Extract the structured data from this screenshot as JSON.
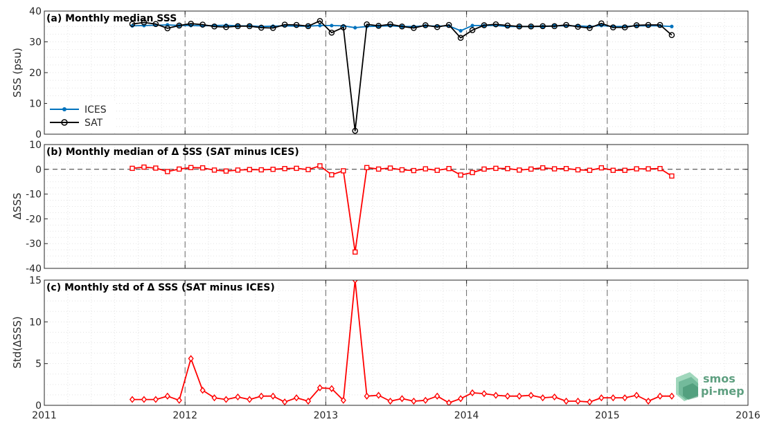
{
  "chart_data": [
    {
      "type": "line",
      "title": "(a) Monthly median SSS",
      "xlabel": "",
      "ylabel": "SSS (psu)",
      "xlim": [
        2011,
        2016
      ],
      "ylim": [
        0,
        40
      ],
      "yticks": [
        0,
        10,
        20,
        30,
        40
      ],
      "grid": "minor-dotted",
      "legend": "bottom-left",
      "x": [
        "2011-08",
        "2011-09",
        "2011-10",
        "2011-11",
        "2011-12",
        "2012-01",
        "2012-02",
        "2012-03",
        "2012-04",
        "2012-05",
        "2012-06",
        "2012-07",
        "2012-08",
        "2012-09",
        "2012-10",
        "2012-11",
        "2012-12",
        "2013-01",
        "2013-02",
        "2013-03",
        "2013-04",
        "2013-05",
        "2013-06",
        "2013-07",
        "2013-08",
        "2013-09",
        "2013-10",
        "2013-11",
        "2013-12",
        "2014-01",
        "2014-02",
        "2014-03",
        "2014-04",
        "2014-05",
        "2014-06",
        "2014-07",
        "2014-08",
        "2014-09",
        "2014-10",
        "2014-11",
        "2014-12",
        "2015-01",
        "2015-02",
        "2015-03",
        "2015-04",
        "2015-05",
        "2015-06"
      ],
      "series": [
        {
          "name": "ICES",
          "color": "#0072BD",
          "marker": "dot",
          "values": [
            35.2,
            35.3,
            35.4,
            35.5,
            35.3,
            35.3,
            35.2,
            35.3,
            35.4,
            35.2,
            35.2,
            35.0,
            35.1,
            35.2,
            35.1,
            35.1,
            35.3,
            35.3,
            35.2,
            34.6,
            35.0,
            35.1,
            35.2,
            35.0,
            35.0,
            35.2,
            35.1,
            35.2,
            33.6,
            35.3,
            35.3,
            35.3,
            35.0,
            35.0,
            35.0,
            35.0,
            35.2,
            35.2,
            35.2,
            35.0,
            35.3,
            35.0,
            35.0,
            35.2,
            35.2,
            35.2,
            35.0
          ]
        },
        {
          "name": "SAT",
          "color": "#000000",
          "marker": "open-circle",
          "values": [
            35.8,
            36.3,
            35.8,
            34.4,
            35.3,
            35.9,
            35.6,
            35.0,
            34.8,
            35.1,
            35.1,
            34.6,
            34.5,
            35.6,
            35.5,
            35.1,
            36.8,
            33.0,
            34.7,
            1.1,
            35.7,
            35.2,
            35.7,
            35.0,
            34.5,
            35.4,
            34.8,
            35.5,
            31.3,
            33.8,
            35.4,
            35.7,
            35.3,
            35.0,
            35.0,
            35.1,
            35.1,
            35.5,
            34.9,
            34.5,
            36.0,
            34.7,
            34.7,
            35.4,
            35.5,
            35.5,
            32.2
          ]
        }
      ]
    },
    {
      "type": "line",
      "title": "(b) Monthly median of Δ SSS (SAT minus ICES)",
      "xlabel": "",
      "ylabel": "ΔSSS",
      "xlim": [
        2011,
        2016
      ],
      "ylim": [
        -40,
        10
      ],
      "yticks": [
        -40,
        -30,
        -20,
        -10,
        0,
        10
      ],
      "reference_line": 0,
      "grid": "minor-dotted",
      "x": [
        "2011-08",
        "2011-09",
        "2011-10",
        "2011-11",
        "2011-12",
        "2012-01",
        "2012-02",
        "2012-03",
        "2012-04",
        "2012-05",
        "2012-06",
        "2012-07",
        "2012-08",
        "2012-09",
        "2012-10",
        "2012-11",
        "2012-12",
        "2013-01",
        "2013-02",
        "2013-03",
        "2013-04",
        "2013-05",
        "2013-06",
        "2013-07",
        "2013-08",
        "2013-09",
        "2013-10",
        "2013-11",
        "2013-12",
        "2014-01",
        "2014-02",
        "2014-03",
        "2014-04",
        "2014-05",
        "2014-06",
        "2014-07",
        "2014-08",
        "2014-09",
        "2014-10",
        "2014-11",
        "2014-12",
        "2015-01",
        "2015-02",
        "2015-03",
        "2015-04",
        "2015-05",
        "2015-06"
      ],
      "series": [
        {
          "color": "#FF0000",
          "marker": "open-square",
          "values": [
            0.4,
            0.9,
            0.5,
            -0.9,
            0.1,
            0.7,
            0.6,
            -0.3,
            -0.7,
            -0.3,
            -0.1,
            -0.2,
            0.0,
            0.3,
            0.4,
            -0.1,
            1.4,
            -2.2,
            -0.6,
            -33.4,
            0.7,
            0.1,
            0.5,
            -0.2,
            -0.5,
            0.2,
            -0.4,
            0.3,
            -2.3,
            -1.3,
            0.1,
            0.4,
            0.3,
            -0.3,
            0.1,
            0.6,
            0.2,
            0.3,
            -0.2,
            -0.4,
            0.6,
            -0.4,
            -0.4,
            0.2,
            0.2,
            0.3,
            -2.7
          ]
        }
      ]
    },
    {
      "type": "line",
      "title": "(c) Monthly std of Δ SSS (SAT minus ICES)",
      "xlabel": "",
      "ylabel": "Std(ΔSSS)",
      "xlim": [
        2011,
        2016
      ],
      "ylim": [
        0,
        15
      ],
      "yticks": [
        0,
        5,
        10,
        15
      ],
      "xticks": [
        2011,
        2012,
        2013,
        2014,
        2015,
        2016
      ],
      "grid": "minor-dotted",
      "x": [
        "2011-08",
        "2011-09",
        "2011-10",
        "2011-11",
        "2011-12",
        "2012-01",
        "2012-02",
        "2012-03",
        "2012-04",
        "2012-05",
        "2012-06",
        "2012-07",
        "2012-08",
        "2012-09",
        "2012-10",
        "2012-11",
        "2012-12",
        "2013-01",
        "2013-02",
        "2013-03",
        "2013-04",
        "2013-05",
        "2013-06",
        "2013-07",
        "2013-08",
        "2013-09",
        "2013-10",
        "2013-11",
        "2013-12",
        "2014-01",
        "2014-02",
        "2014-03",
        "2014-04",
        "2014-05",
        "2014-06",
        "2014-07",
        "2014-08",
        "2014-09",
        "2014-10",
        "2014-11",
        "2014-12",
        "2015-01",
        "2015-02",
        "2015-03",
        "2015-04",
        "2015-05",
        "2015-06"
      ],
      "series": [
        {
          "color": "#FF0000",
          "marker": "open-diamond",
          "values": [
            0.7,
            0.7,
            0.7,
            1.1,
            0.6,
            5.6,
            1.8,
            0.9,
            0.7,
            1.0,
            0.7,
            1.1,
            1.1,
            0.4,
            0.9,
            0.5,
            2.1,
            2.0,
            0.6,
            15.0,
            1.1,
            1.2,
            0.5,
            0.8,
            0.5,
            0.6,
            1.1,
            0.3,
            0.8,
            1.5,
            1.4,
            1.2,
            1.1,
            1.1,
            1.2,
            0.9,
            1.0,
            0.5,
            0.5,
            0.4,
            0.9,
            0.9,
            0.9,
            1.2,
            0.5,
            1.1,
            1.1
          ]
        }
      ]
    }
  ],
  "vertical_dashed_lines_at_years": [
    2012,
    2013,
    2014,
    2015
  ],
  "logo": {
    "line1": "smos",
    "line2": "pi-mep"
  }
}
